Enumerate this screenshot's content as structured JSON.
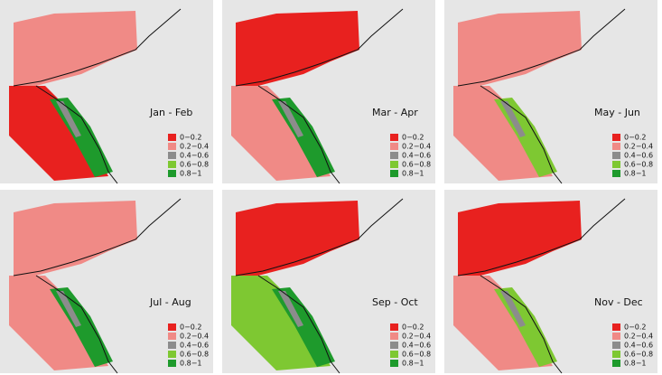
{
  "panels": [
    {
      "title": "Jan - Feb"
    },
    {
      "title": "Mar - Apr"
    },
    {
      "title": "May - Jun"
    },
    {
      "title": "Jul - Aug"
    },
    {
      "title": "Sep - Oct"
    },
    {
      "title": "Nov - Dec"
    }
  ],
  "legend": {
    "labels": [
      "0−0.2",
      "0.2−0.4",
      "0.4−0.6",
      "0.6−0.8",
      "0.8−1"
    ],
    "colors": [
      "#e8211f",
      "#f08a86",
      "#8c8c8c",
      "#7ec832",
      "#1e9a2c"
    ]
  }
}
